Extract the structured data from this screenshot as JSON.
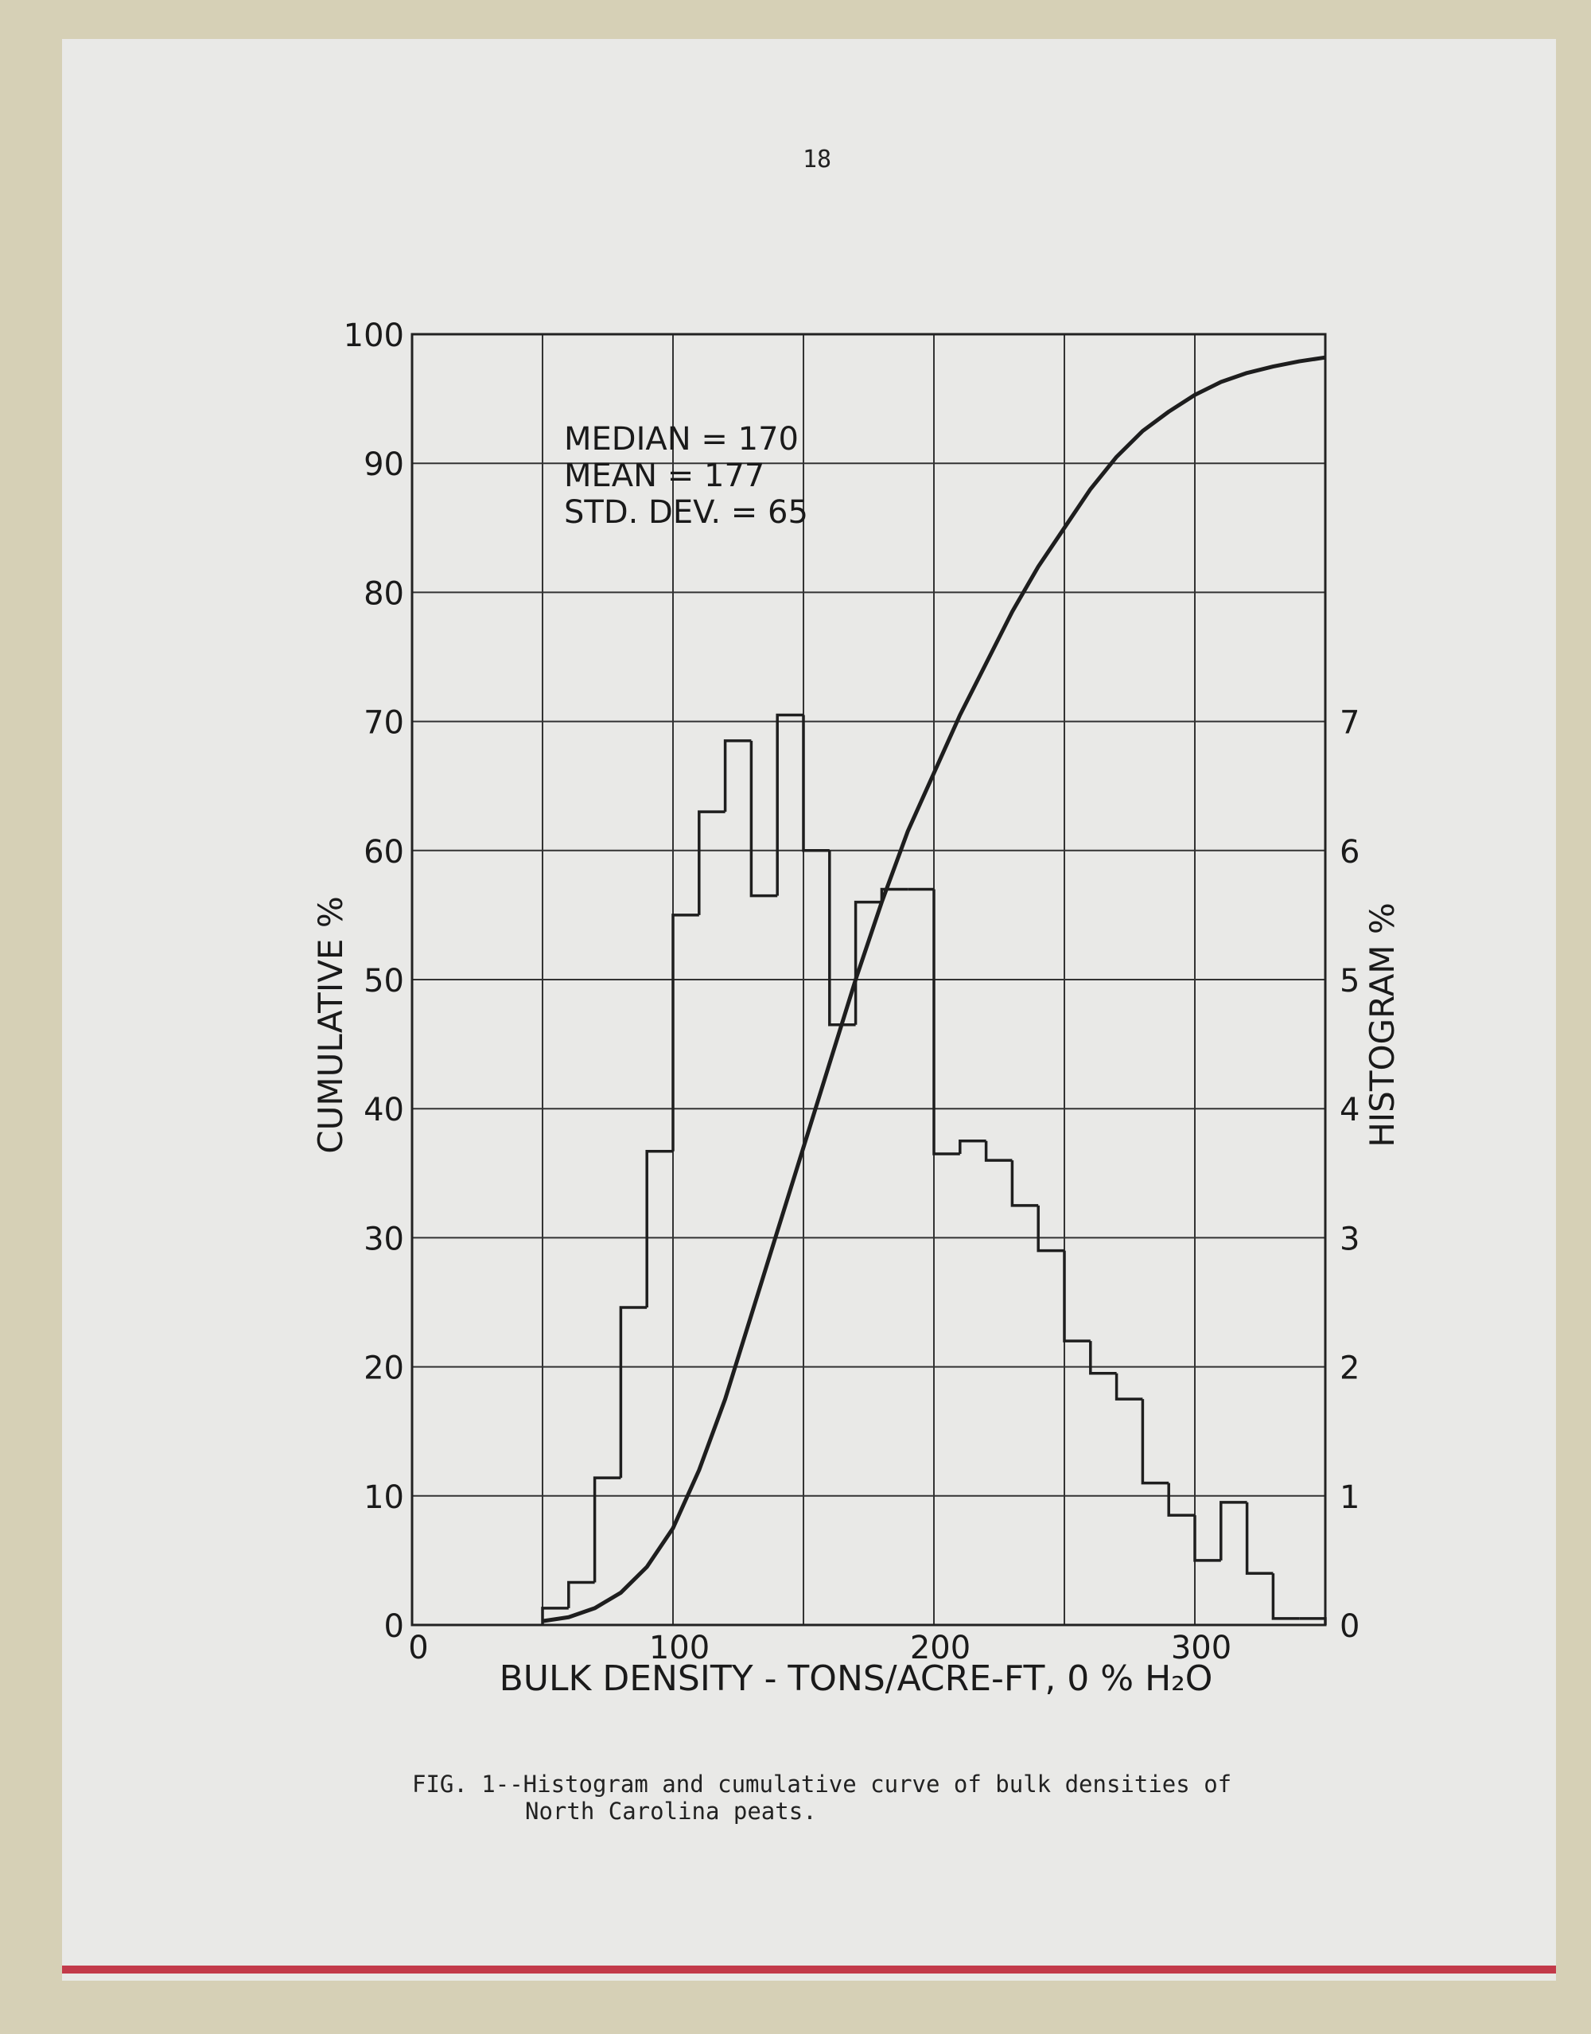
{
  "page_number": "18",
  "chart_data": {
    "type": "histogram",
    "xlabel": "BULK DENSITY - TONS/ACRE-FT, 0 % H₂O",
    "ylabel": "CUMULATIVE %",
    "y2label": "HISTOGRAM %",
    "annotations": [
      "MEDIAN = 170",
      "MEAN = 177",
      "STD. DEV. = 65"
    ],
    "xlim": [
      0,
      350
    ],
    "xticks": [
      0,
      100,
      200,
      300
    ],
    "xgrid": [
      0,
      50,
      100,
      150,
      200,
      250,
      300,
      350
    ],
    "ylim": [
      0,
      100
    ],
    "yticks": [
      0,
      10,
      20,
      30,
      40,
      50,
      60,
      70,
      80,
      90,
      100
    ],
    "y2lim": [
      0,
      10
    ],
    "y2ticks": [
      0,
      1,
      2,
      3,
      4,
      5,
      6,
      7
    ],
    "grid": true,
    "color": "#1e1e1e",
    "series": [
      {
        "type": "histogram",
        "axis": "y2",
        "bins": [
          50,
          60,
          70,
          80,
          90,
          100,
          110,
          120,
          130,
          140,
          150,
          160,
          170,
          180,
          190,
          200,
          210,
          220,
          230,
          240,
          250,
          260,
          270,
          280,
          290,
          300,
          310,
          320,
          330,
          340,
          350
        ],
        "values": [
          0.13,
          0.33,
          1.14,
          2.46,
          3.67,
          5.5,
          6.3,
          6.85,
          5.65,
          7.05,
          6.0,
          4.65,
          5.6,
          5.7,
          5.7,
          3.65,
          3.75,
          3.6,
          3.25,
          2.9,
          2.2,
          1.95,
          1.75,
          1.1,
          0.85,
          0.5,
          0.95,
          0.4,
          0.05,
          0.05
        ]
      },
      {
        "type": "line",
        "x": [
          50,
          60,
          70,
          80,
          90,
          100,
          110,
          120,
          130,
          140,
          150,
          160,
          170,
          180,
          190,
          200,
          210,
          220,
          230,
          240,
          250,
          260,
          270,
          280,
          290,
          300,
          310,
          320,
          330,
          340,
          350
        ],
        "values": [
          0.3,
          0.6,
          1.3,
          2.5,
          4.5,
          7.5,
          12,
          17.5,
          24,
          30.5,
          37,
          43.5,
          50,
          56,
          61.5,
          66,
          70.5,
          74.5,
          78.5,
          82,
          85,
          88,
          90.5,
          92.5,
          94,
          95.3,
          96.3,
          97,
          97.5,
          97.9,
          98.2
        ]
      }
    ]
  },
  "caption": {
    "line1": "FIG. 1--Histogram and cumulative curve of bulk densities of",
    "line2": "North Carolina peats."
  }
}
